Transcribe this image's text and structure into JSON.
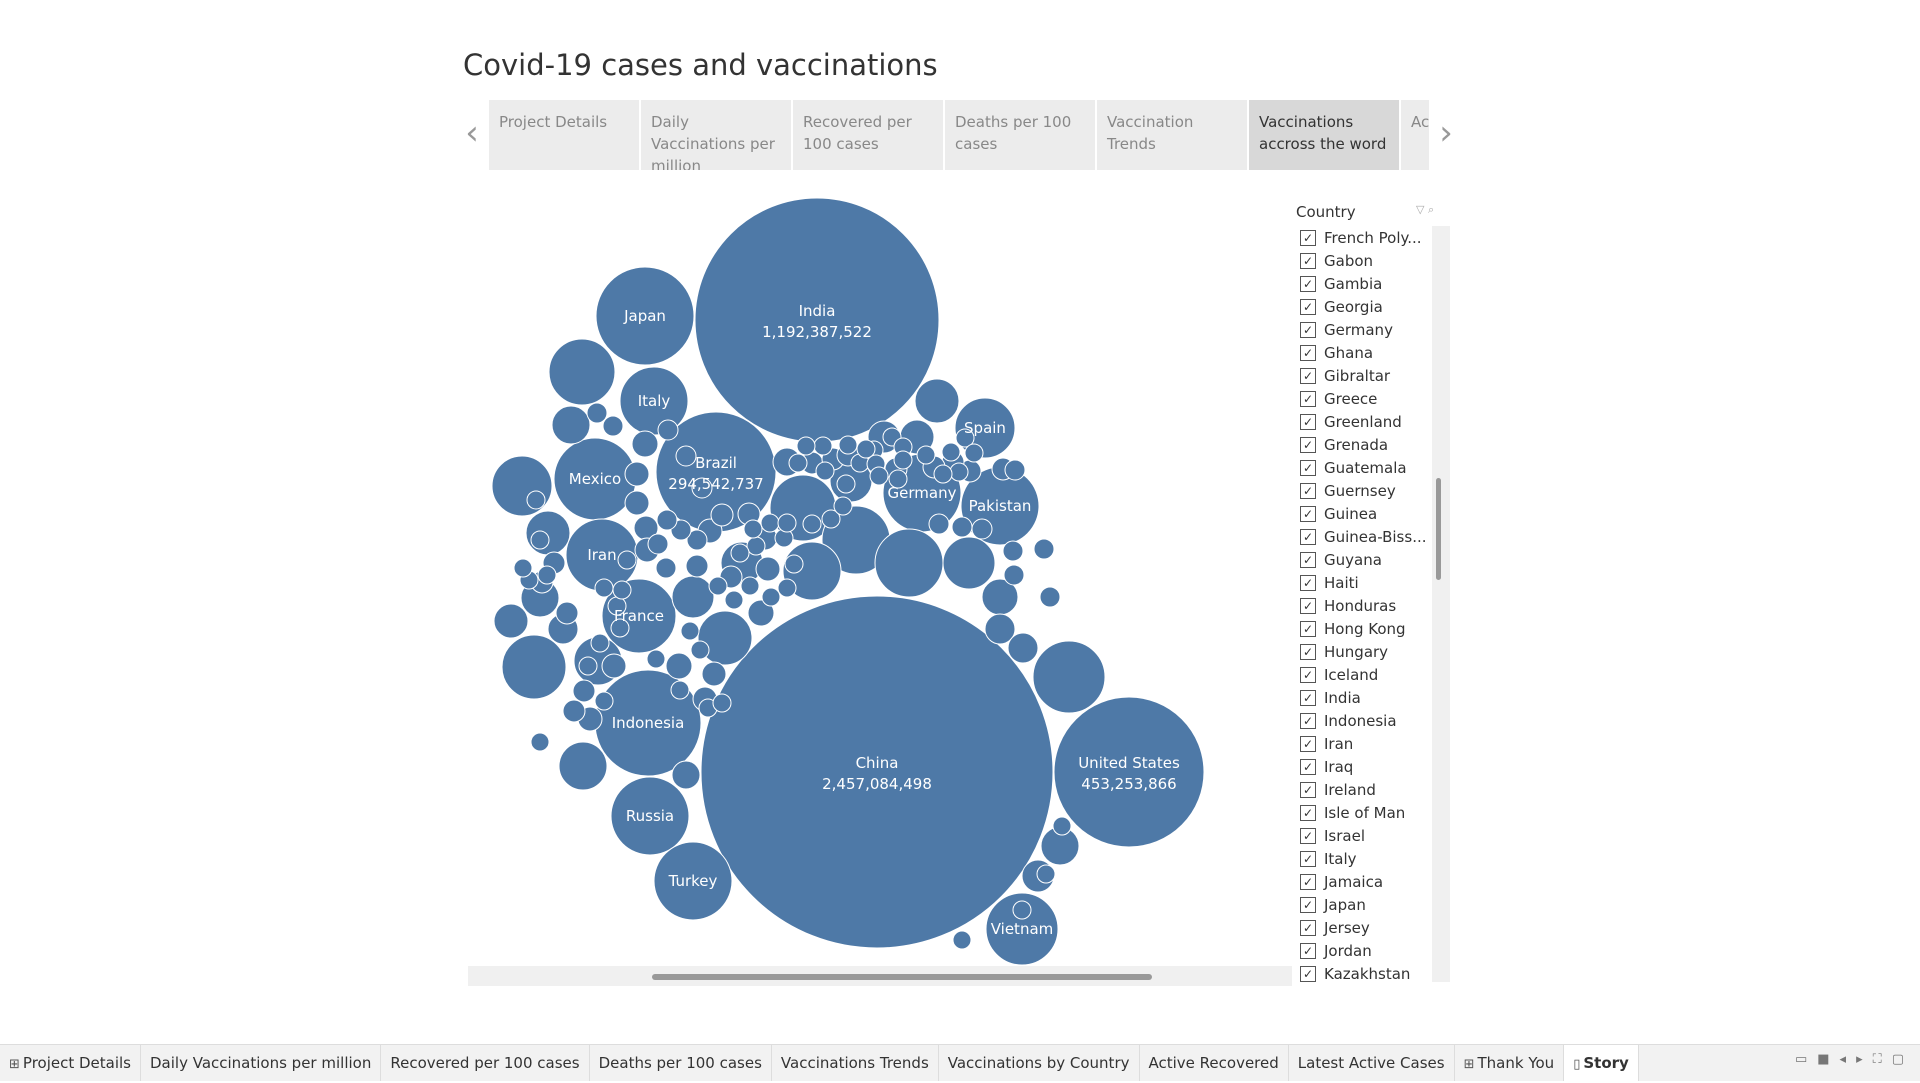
{
  "title": "Covid-19 cases and vaccinations",
  "story_points": [
    {
      "label": "Project Details",
      "active": false
    },
    {
      "label": "Daily Vaccinations per million",
      "active": false
    },
    {
      "label": "Recovered per 100 cases",
      "active": false
    },
    {
      "label": "Deaths per 100 cases",
      "active": false
    },
    {
      "label": "Vaccination Trends",
      "active": false
    },
    {
      "label": "Vaccinations accross the word",
      "active": true
    },
    {
      "label": "Ac Re",
      "active": false
    }
  ],
  "nav": {
    "prev_icon": "chevron-left-icon",
    "next_icon": "chevron-right-icon"
  },
  "chart_data": {
    "type": "bubble",
    "title": "",
    "bubbles": [
      {
        "name": "China",
        "value": 2457084498,
        "label": "2,457,084,498"
      },
      {
        "name": "India",
        "value": 1192387522,
        "label": "1,192,387,522"
      },
      {
        "name": "United States",
        "value": 453253866,
        "label": "453,253,866"
      },
      {
        "name": "Brazil",
        "value": 294542737,
        "label": "294,542,737"
      },
      {
        "name": "Indonesia",
        "value": null
      },
      {
        "name": "Japan",
        "value": null
      },
      {
        "name": "Germany",
        "value": null
      },
      {
        "name": "Russia",
        "value": null
      },
      {
        "name": "Mexico",
        "value": null
      },
      {
        "name": "Pakistan",
        "value": null
      },
      {
        "name": "France",
        "value": null
      },
      {
        "name": "Turkey",
        "value": null
      },
      {
        "name": "Vietnam",
        "value": null
      },
      {
        "name": "Iran",
        "value": null
      },
      {
        "name": "Italy",
        "value": null
      },
      {
        "name": "Spain",
        "value": null
      }
    ],
    "color": "#4e79a7"
  },
  "filter": {
    "title": "Country",
    "items": [
      "French Poly...",
      "Gabon",
      "Gambia",
      "Georgia",
      "Germany",
      "Ghana",
      "Gibraltar",
      "Greece",
      "Greenland",
      "Grenada",
      "Guatemala",
      "Guernsey",
      "Guinea",
      "Guinea-Biss...",
      "Guyana",
      "Haiti",
      "Honduras",
      "Hong Kong",
      "Hungary",
      "Iceland",
      "India",
      "Indonesia",
      "Iran",
      "Iraq",
      "Ireland",
      "Isle of Man",
      "Israel",
      "Italy",
      "Jamaica",
      "Japan",
      "Jersey",
      "Jordan",
      "Kazakhstan"
    ],
    "checked": true,
    "check_glyph": "✓",
    "icons": [
      "funnel-icon",
      "search-icon"
    ]
  },
  "tabs": [
    {
      "label": "Project Details",
      "icon": "grid-icon",
      "active": false
    },
    {
      "label": "Daily Vaccinations per million",
      "icon": "",
      "active": false
    },
    {
      "label": "Recovered per 100 cases",
      "icon": "",
      "active": false
    },
    {
      "label": "Deaths per 100 cases",
      "icon": "",
      "active": false
    },
    {
      "label": "Vaccinations Trends",
      "icon": "",
      "active": false
    },
    {
      "label": "Vaccinations by Country",
      "icon": "",
      "active": false
    },
    {
      "label": "Active Recovered",
      "icon": "",
      "active": false
    },
    {
      "label": "Latest Active Cases",
      "icon": "",
      "active": false
    },
    {
      "label": "Thank You",
      "icon": "grid-icon",
      "active": false
    },
    {
      "label": "Story",
      "icon": "book-icon",
      "active": true
    }
  ],
  "bottom_controls": [
    "presentation-icon",
    "stop-icon",
    "prev-icon",
    "next-icon",
    "fullscreen-icon",
    "device-icon"
  ]
}
